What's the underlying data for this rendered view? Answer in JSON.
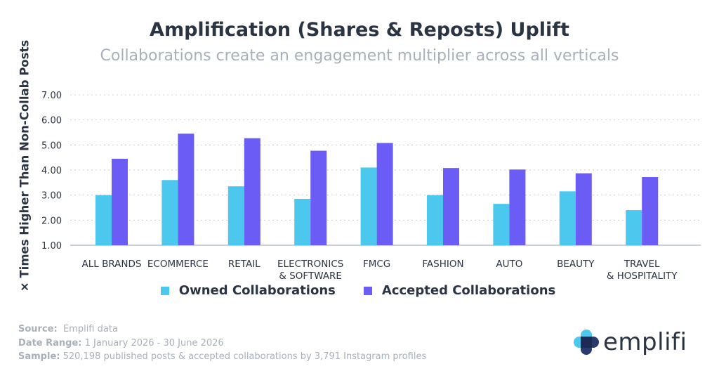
{
  "header": {
    "title": "Amplification (Shares & Reposts) Uplift",
    "subtitle": "Collaborations create an engagement multiplier across all verticals"
  },
  "chart_data": {
    "type": "bar",
    "ylabel": "× Times Higher Than Non-Collab Posts",
    "ylim": [
      1,
      7
    ],
    "yticks": [
      "1.00",
      "2.00",
      "3.00",
      "4.00",
      "5.00",
      "6.00",
      "7.00"
    ],
    "grid": "horizontal dotted",
    "legend_position": "bottom",
    "categories": [
      [
        "ALL BRANDS"
      ],
      [
        "ECOMMERCE"
      ],
      [
        "RETAIL"
      ],
      [
        "ELECTRONICS",
        "& SOFTWARE"
      ],
      [
        "FMCG"
      ],
      [
        "FASHION"
      ],
      [
        "AUTO"
      ],
      [
        "BEAUTY"
      ],
      [
        "TRAVEL",
        "& HOSPITALITY"
      ]
    ],
    "series": [
      {
        "name": "Owned Collaborations",
        "color": "#4cc8ee",
        "values": [
          3.0,
          3.6,
          3.35,
          2.85,
          4.1,
          3.0,
          2.65,
          3.15,
          2.4
        ]
      },
      {
        "name": "Accepted Collaborations",
        "color": "#6a5cf5",
        "values": [
          4.45,
          5.45,
          5.27,
          4.77,
          5.08,
          4.08,
          4.02,
          3.87,
          3.72
        ]
      }
    ]
  },
  "footer": {
    "source_label": "Source:",
    "source_value": "Emplifi data",
    "date_label": "Date Range:",
    "date_value": "1 January 2026 - 30 June 2026",
    "sample_label": "Sample:",
    "sample_value": "520,198 published posts & accepted collaborations by 3,791 Instagram profiles"
  },
  "logo": {
    "wordmark": "emplifi",
    "icon": "emplifi-logo-icon",
    "colors": [
      "#4cc8ee",
      "#2b3a6e"
    ]
  }
}
